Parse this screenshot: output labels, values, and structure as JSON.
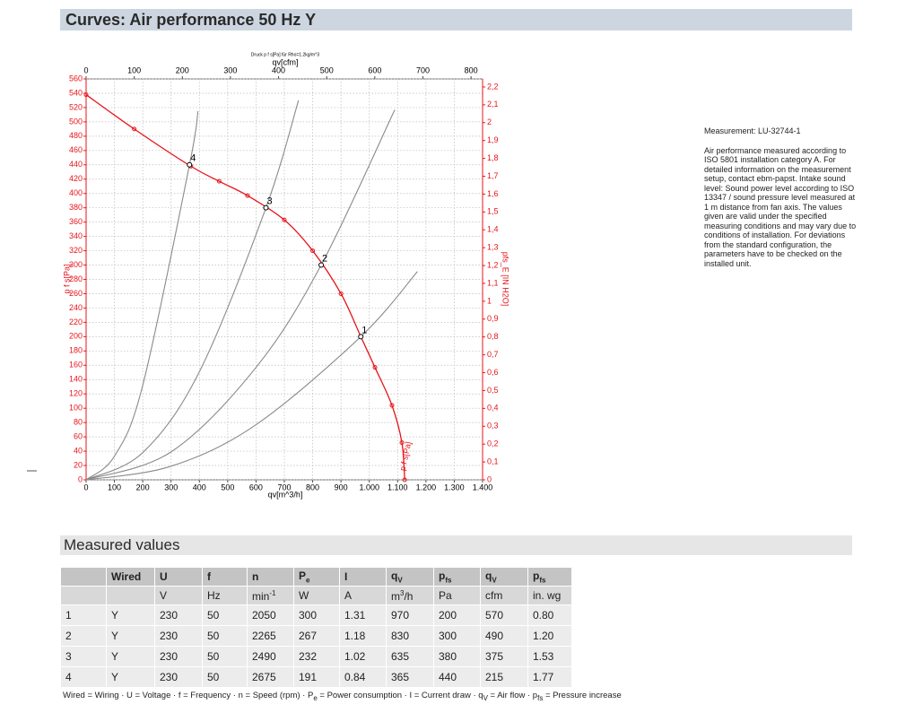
{
  "header": {
    "title": "Curves: Air performance 50 Hz Y"
  },
  "chart_data": {
    "type": "line",
    "subtitle": "Druck p f s[Pa] für Rho=1.2kg/m^3",
    "xlabel": "qv[m^3/h]",
    "x2label": "qv[cfm]",
    "ylabel": "p f s[Pa]",
    "y2label": "pfs_E [IN H2O]",
    "xlim": [
      0,
      1400
    ],
    "xticks": [
      0,
      100,
      200,
      300,
      400,
      500,
      600,
      700,
      800,
      900,
      {
        "value": 1000,
        "label": "1.000"
      },
      {
        "value": 1100,
        "label": "1.100"
      },
      {
        "value": 1200,
        "label": "1.200"
      },
      {
        "value": 1300,
        "label": "1.300"
      },
      {
        "value": 1400,
        "label": "1.400"
      }
    ],
    "x2lim": [
      0,
      824
    ],
    "x2ticks": [
      0,
      100,
      200,
      300,
      400,
      500,
      600,
      700,
      800
    ],
    "ylim": [
      0,
      560
    ],
    "yticks": [
      0,
      20,
      40,
      60,
      80,
      100,
      120,
      140,
      160,
      180,
      200,
      220,
      240,
      260,
      280,
      300,
      320,
      340,
      360,
      380,
      400,
      420,
      440,
      460,
      480,
      500,
      520,
      540,
      560
    ],
    "y2lim": [
      0,
      2.245
    ],
    "y2ticks": [
      0,
      {
        "value": 0.1,
        "label": "0,1"
      },
      {
        "value": 0.2,
        "label": "0,2"
      },
      {
        "value": 0.3,
        "label": "0,3"
      },
      {
        "value": 0.4,
        "label": "0,4"
      },
      {
        "value": 0.5,
        "label": "0,5"
      },
      {
        "value": 0.6,
        "label": "0,6"
      },
      {
        "value": 0.7,
        "label": "0,7"
      },
      {
        "value": 0.8,
        "label": "0,8"
      },
      {
        "value": 0.9,
        "label": "0,9"
      },
      1,
      {
        "value": 1.1,
        "label": "1,1"
      },
      {
        "value": 1.2,
        "label": "1,2"
      },
      {
        "value": 1.3,
        "label": "1,3"
      },
      {
        "value": 1.4,
        "label": "1,4"
      },
      {
        "value": 1.5,
        "label": "1,5"
      },
      {
        "value": 1.6,
        "label": "1,6"
      },
      {
        "value": 1.7,
        "label": "1,7"
      },
      {
        "value": 1.8,
        "label": "1,8"
      },
      {
        "value": 1.9,
        "label": "1,9"
      },
      2,
      {
        "value": 2.1,
        "label": "2,1"
      },
      {
        "value": 2.2,
        "label": "2,2"
      }
    ],
    "grid": true,
    "series": [
      {
        "name": "p f s[Pa]",
        "color": "#e8141b",
        "markers": true,
        "x": [
          0,
          170,
          370,
          470,
          570,
          700,
          800,
          900,
          970,
          1020,
          1080,
          1115,
          1125
        ],
        "values": [
          538,
          490,
          438,
          417,
          397,
          363,
          320,
          260,
          200,
          157,
          104,
          52,
          0
        ]
      },
      {
        "color": "#8a8a8a",
        "markers": false,
        "x": [
          0,
          300,
          600,
          970,
          1170
        ],
        "values": [
          0,
          19,
          77,
          200,
          291
        ]
      },
      {
        "color": "#8a8a8a",
        "markers": false,
        "x": [
          0,
          300,
          600,
          830,
          1090
        ],
        "values": [
          0,
          39,
          157,
          300,
          517
        ]
      },
      {
        "color": "#8a8a8a",
        "markers": false,
        "x": [
          0,
          200,
          400,
          635,
          750
        ],
        "values": [
          0,
          38,
          151,
          380,
          530
        ]
      },
      {
        "color": "#8a8a8a",
        "markers": false,
        "x": [
          0,
          100,
          200,
          365,
          395
        ],
        "values": [
          0,
          33,
          132,
          440,
          515
        ]
      }
    ],
    "operating_points": [
      {
        "label": "1",
        "x": 970,
        "y": 200
      },
      {
        "label": "2",
        "x": 830,
        "y": 300
      },
      {
        "label": "3",
        "x": 635,
        "y": 380
      },
      {
        "label": "4",
        "x": 365,
        "y": 440
      }
    ]
  },
  "notes": {
    "measurement": "Measurement: LU-32744-1",
    "text": "Air performance measured according to ISO 5801 installation category A. For detailed information on the measurement setup, contact ebm-papst. Intake sound level: Sound power level according to ISO 13347 / sound pressure level measured at 1 m distance from fan axis. The values given are valid under the specified measuring conditions and may vary due to conditions of installation. For deviations from the standard configuration, the parameters have to be checked on the installed unit."
  },
  "table": {
    "title": "Measured values",
    "header": [
      null,
      "Wired",
      "U",
      "f",
      "n",
      {
        "parts": [
          {
            "text": "P"
          },
          {
            "text": "e",
            "style": "sub"
          }
        ]
      },
      "I",
      {
        "parts": [
          {
            "text": "q"
          },
          {
            "text": "V",
            "style": "sub"
          }
        ]
      },
      {
        "parts": [
          {
            "text": "p"
          },
          {
            "text": "fs",
            "style": "sub"
          }
        ]
      },
      {
        "parts": [
          {
            "text": "q"
          },
          {
            "text": "V",
            "style": "sub"
          }
        ]
      },
      {
        "parts": [
          {
            "text": "p"
          },
          {
            "text": "fs",
            "style": "sub"
          }
        ]
      }
    ],
    "units": [
      null,
      null,
      "V",
      "Hz",
      {
        "parts": [
          {
            "text": "min"
          },
          {
            "text": "-1",
            "style": "sup"
          }
        ]
      },
      "W",
      "A",
      {
        "parts": [
          {
            "text": "m"
          },
          {
            "text": "3",
            "style": "sup"
          },
          {
            "text": "/h"
          }
        ]
      },
      "Pa",
      "cfm",
      "in. wg"
    ],
    "rows": [
      [
        "1",
        "Y",
        "230",
        "50",
        "2050",
        "300",
        "1.31",
        "970",
        "200",
        "570",
        "0.80"
      ],
      [
        "2",
        "Y",
        "230",
        "50",
        "2265",
        "267",
        "1.18",
        "830",
        "300",
        "490",
        "1.20"
      ],
      [
        "3",
        "Y",
        "230",
        "50",
        "2490",
        "232",
        "1.02",
        "635",
        "380",
        "375",
        "1.53"
      ],
      [
        "4",
        "Y",
        "230",
        "50",
        "2675",
        "191",
        "0.84",
        "365",
        "440",
        "215",
        "1.77"
      ]
    ],
    "legend": {
      "parts": [
        {
          "text": "Wired = Wiring · U = Voltage · f = Frequency · n = Speed (rpm) · P"
        },
        {
          "text": "e",
          "style": "sub"
        },
        {
          "text": " = Power consumption · I = Current draw · q"
        },
        {
          "text": "V",
          "style": "sub"
        },
        {
          "text": " = Air flow · p"
        },
        {
          "text": "fs",
          "style": "sub"
        },
        {
          "text": " = Pressure increase"
        }
      ]
    }
  }
}
